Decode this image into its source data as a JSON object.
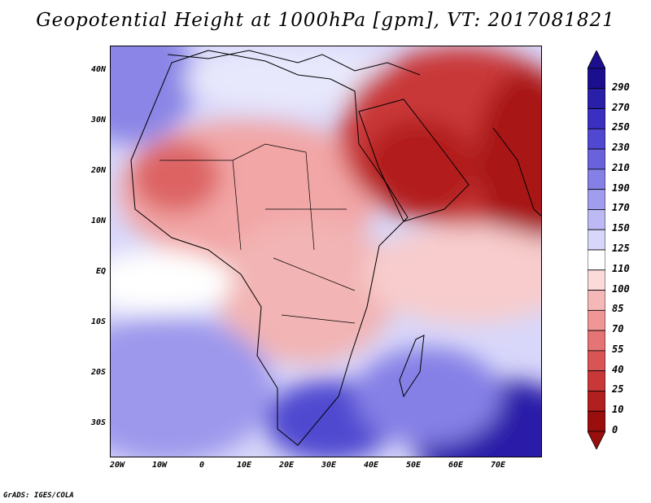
{
  "title": "Geopotential Height at 1000hPa [gpm], VT: 2017081821",
  "credit": "GrADS: IGES/COLA",
  "lat_labels": [
    "40N",
    "30N",
    "20N",
    "10N",
    "EQ",
    "10S",
    "20S",
    "30S"
  ],
  "lon_labels": [
    "20W",
    "10W",
    "0",
    "10E",
    "20E",
    "30E",
    "40E",
    "50E",
    "60E",
    "70E"
  ],
  "colorbar": {
    "labels": [
      "290",
      "270",
      "250",
      "230",
      "210",
      "190",
      "170",
      "150",
      "125",
      "110",
      "100",
      "85",
      "70",
      "55",
      "40",
      "25",
      "10",
      "0"
    ],
    "colors": [
      "#1c0f8f",
      "#2a1fa8",
      "#3a2fc0",
      "#5048d0",
      "#6a62dc",
      "#8580e6",
      "#a09cee",
      "#bcb9f4",
      "#d8d7fa",
      "#ffffff",
      "#fbdada",
      "#f5b8b8",
      "#ef9696",
      "#e57474",
      "#d95454",
      "#c93838",
      "#b21f1f",
      "#9a0e0e"
    ]
  }
}
